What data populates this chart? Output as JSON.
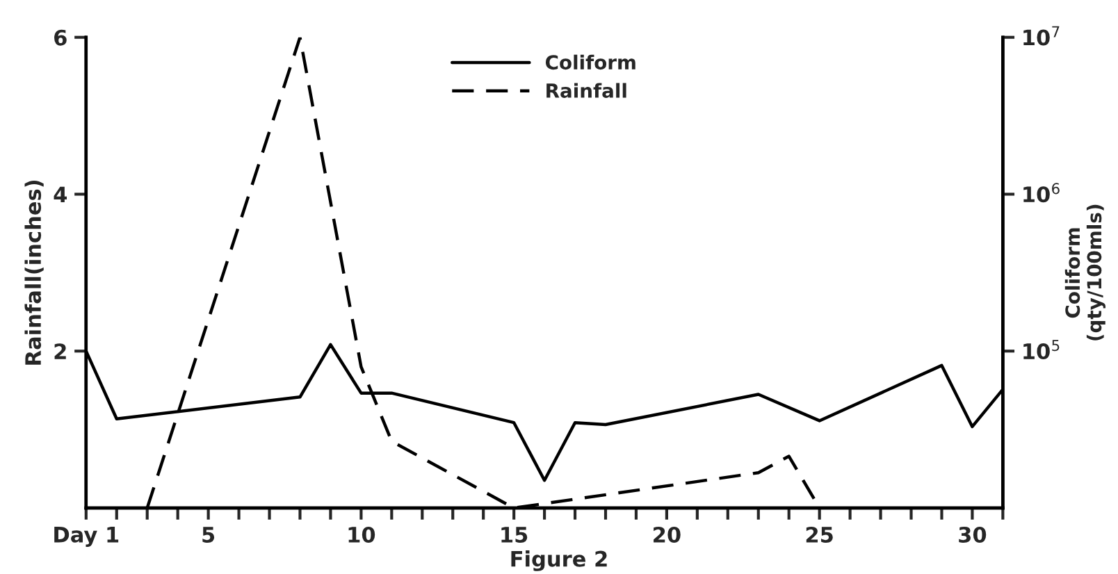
{
  "chart_data": {
    "type": "line",
    "xlabel": null,
    "ylabel": "Rainfall(inches)",
    "y2label": "Coliform\n(qty/100mls)",
    "annotations": [
      "Figure 2"
    ],
    "series": [
      {
        "name": "Coliform",
        "color": "#000000",
        "line_style": "solid",
        "axis": "y2",
        "x": [
          1,
          2,
          8,
          9,
          10,
          11,
          15,
          16,
          17,
          18,
          23,
          25,
          29,
          30,
          31
        ],
        "values": [
          100000,
          37000,
          51000,
          110000,
          54000,
          54000,
          35000,
          15000,
          35000,
          34000,
          53000,
          36000,
          81000,
          33000,
          57000
        ]
      },
      {
        "name": "Rainfall",
        "color": "#000000",
        "line_style": "dashed",
        "x": [
          3,
          8,
          10,
          11,
          15,
          23,
          24,
          25
        ],
        "values": [
          0,
          6,
          1.8,
          0.85,
          0,
          0.45,
          0.66,
          0
        ]
      }
    ],
    "xlim": [
      1,
      31
    ],
    "xticks": [
      {
        "value": 1,
        "label": "Day 1"
      },
      {
        "value": 2,
        "label": null
      },
      {
        "value": 3,
        "label": null
      },
      {
        "value": 4,
        "label": null
      },
      5,
      {
        "value": 6,
        "label": null
      },
      {
        "value": 7,
        "label": null
      },
      {
        "value": 8,
        "label": null
      },
      {
        "value": 9,
        "label": null
      },
      10,
      {
        "value": 11,
        "label": null
      },
      {
        "value": 12,
        "label": null
      },
      {
        "value": 13,
        "label": null
      },
      {
        "value": 14,
        "label": null
      },
      15,
      {
        "value": 16,
        "label": null
      },
      {
        "value": 17,
        "label": null
      },
      {
        "value": 18,
        "label": null
      },
      {
        "value": 19,
        "label": null
      },
      20,
      {
        "value": 21,
        "label": null
      },
      {
        "value": 22,
        "label": null
      },
      {
        "value": 23,
        "label": null
      },
      {
        "value": 24,
        "label": null
      },
      25,
      {
        "value": 26,
        "label": null
      },
      {
        "value": 27,
        "label": null
      },
      {
        "value": 28,
        "label": null
      },
      {
        "value": 29,
        "label": null
      },
      30,
      {
        "value": 31,
        "label": null
      }
    ],
    "ylim": [
      0,
      6
    ],
    "yticks": [
      2,
      4,
      6
    ],
    "y2lim": [
      10000,
      10000000
    ],
    "y2ticks": [
      {
        "value": 100000,
        "label": "10$^{5}$"
      },
      {
        "value": 1000000,
        "label": "10$^{6}$"
      },
      {
        "value": 10000000,
        "label": "10$^{7}$"
      }
    ],
    "log": "y2",
    "grid": false,
    "legend": "top",
    "marker": "none"
  }
}
